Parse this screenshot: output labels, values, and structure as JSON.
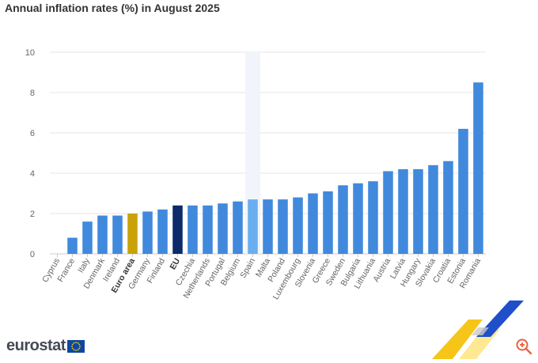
{
  "page_title": "Annual inflation rates (%) in August 2025",
  "brand": {
    "logo_text": "eurostat"
  },
  "colors": {
    "bar": "#4189dd",
    "bar_highlight": "#6aaef0",
    "euro_area": "#c9a20a",
    "eu": "#0d2b6b",
    "grid": "#e6e6e6",
    "hover_band": "#f2f4fb"
  },
  "chart_data": {
    "type": "bar",
    "title": "Annual inflation rates (%) in August 2025",
    "xlabel": "",
    "ylabel": "",
    "ylim": [
      0,
      10
    ],
    "yticks": [
      0,
      2,
      4,
      6,
      8,
      10
    ],
    "grid": true,
    "categories": [
      "Cyprus",
      "France",
      "Italy",
      "Denmark",
      "Ireland",
      "Euro area",
      "Germany",
      "Finland",
      "EU",
      "Czechia",
      "Netherlands",
      "Portugal",
      "Belgium",
      "Spain",
      "Malta",
      "Poland",
      "Luxembourg",
      "Slovenia",
      "Greece",
      "Sweden",
      "Bulgaria",
      "Lithuania",
      "Austria",
      "Latvia",
      "Hungary",
      "Slovakia",
      "Croatia",
      "Estonia",
      "Romania"
    ],
    "values": [
      0.0,
      0.8,
      1.6,
      1.9,
      1.9,
      2.0,
      2.1,
      2.2,
      2.4,
      2.4,
      2.4,
      2.5,
      2.6,
      2.7,
      2.7,
      2.7,
      2.8,
      3.0,
      3.1,
      3.4,
      3.5,
      3.6,
      4.1,
      4.2,
      4.2,
      4.4,
      4.6,
      6.2,
      8.5
    ],
    "bold_categories": [
      "Euro area",
      "EU"
    ],
    "highlighted_category": "Spain"
  }
}
